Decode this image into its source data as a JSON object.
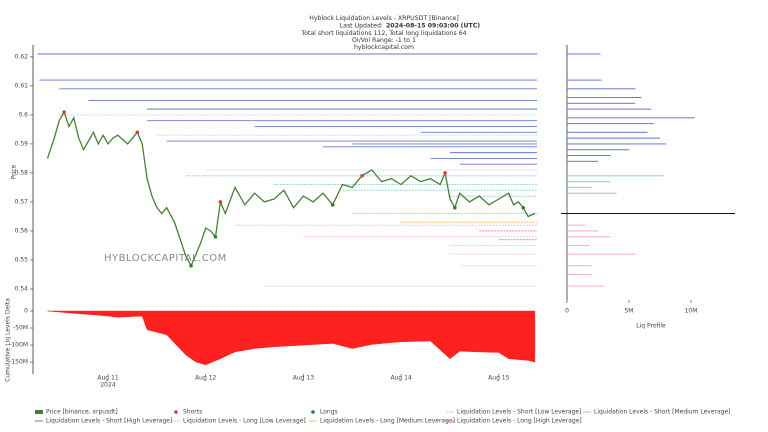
{
  "chart_data": [
    {
      "type": "line",
      "title": "Hyblock Liquidation Levels - XRPUSDT [Binance]",
      "updated_label": "Last Updated:",
      "updated": "2024-08-15 09:03:00 (UTC)",
      "totals": "Total short liquidations 112, Total long liquidations 64",
      "range": "OI/Vol Range: -1 to 1",
      "source": "hyblockcapital.com",
      "watermark": "HYBLOCKCAPITAL.COM",
      "y_label": "Price",
      "x_year_label": "2024",
      "xlim": [
        10.232,
        15.391
      ],
      "xticks": [
        {
          "value": 11,
          "label": "Aug 11"
        },
        {
          "value": 12,
          "label": "Aug 12"
        },
        {
          "value": 13,
          "label": "Aug 13"
        },
        {
          "value": 14,
          "label": "Aug 14"
        },
        {
          "value": 15,
          "label": "Aug 15"
        }
      ],
      "ylim": [
        0.5362,
        0.6241
      ],
      "yticks": [
        0.54,
        0.55,
        0.56,
        0.57,
        0.58,
        0.59,
        0.6,
        0.61,
        0.62
      ],
      "series": [
        {
          "name": "Price [binance, xrpusdt]",
          "type": "line",
          "color": "#4a7d3a",
          "x": [
            10.38,
            10.45,
            10.5,
            10.55,
            10.6,
            10.65,
            10.7,
            10.75,
            10.8,
            10.85,
            10.9,
            10.95,
            11.0,
            11.05,
            11.1,
            11.2,
            11.3,
            11.35,
            11.4,
            11.45,
            11.5,
            11.55,
            11.6,
            11.68,
            11.75,
            11.8,
            11.85,
            11.9,
            11.95,
            12.0,
            12.05,
            12.1,
            12.15,
            12.2,
            12.3,
            12.4,
            12.5,
            12.6,
            12.7,
            12.8,
            12.9,
            13.0,
            13.1,
            13.2,
            13.3,
            13.4,
            13.5,
            13.6,
            13.7,
            13.8,
            13.9,
            14.0,
            14.1,
            14.2,
            14.3,
            14.4,
            14.45,
            14.5,
            14.55,
            14.6,
            14.7,
            14.8,
            14.9,
            15.0,
            15.1,
            15.15,
            15.2,
            15.25,
            15.3,
            15.37
          ],
          "values": [
            0.585,
            0.592,
            0.598,
            0.601,
            0.596,
            0.599,
            0.592,
            0.588,
            0.591,
            0.594,
            0.59,
            0.593,
            0.59,
            0.592,
            0.593,
            0.59,
            0.594,
            0.59,
            0.578,
            0.572,
            0.568,
            0.566,
            0.568,
            0.563,
            0.556,
            0.551,
            0.548,
            0.552,
            0.556,
            0.561,
            0.56,
            0.558,
            0.57,
            0.566,
            0.575,
            0.569,
            0.573,
            0.57,
            0.571,
            0.574,
            0.568,
            0.572,
            0.57,
            0.573,
            0.569,
            0.576,
            0.575,
            0.579,
            0.581,
            0.577,
            0.578,
            0.576,
            0.579,
            0.577,
            0.578,
            0.576,
            0.58,
            0.571,
            0.568,
            0.573,
            0.57,
            0.572,
            0.569,
            0.571,
            0.573,
            0.569,
            0.57,
            0.568,
            0.565,
            0.566
          ]
        },
        {
          "name": "Shorts",
          "type": "scatter",
          "color": "#e53935",
          "x": [
            10.55,
            11.3,
            12.15,
            13.6,
            14.45
          ],
          "values": [
            0.601,
            0.594,
            0.57,
            0.579,
            0.58
          ]
        },
        {
          "name": "Longs",
          "type": "scatter",
          "color": "#2e7d32",
          "x": [
            11.85,
            12.1,
            13.3,
            14.55,
            15.25
          ],
          "values": [
            0.548,
            0.558,
            0.569,
            0.568,
            0.568
          ]
        },
        {
          "name": "Liquidation Levels - Short [Low Leverage]",
          "type": "level",
          "color": "#cfd4ee",
          "x": [
            10.5,
            11.5,
            12.0
          ],
          "values": [
            0.6,
            0.593,
            0.581
          ]
        },
        {
          "name": "Liquidation Levels - Short [Medium Leverage]",
          "type": "level",
          "color": "#8fd1c6",
          "x": [
            11.8,
            12.7,
            13.4,
            14.5
          ],
          "values": [
            0.579,
            0.576,
            0.574,
            0.572
          ]
        },
        {
          "name": "Liquidation Levels - Short [High Leverage]",
          "type": "level",
          "color": "#6a76d4",
          "x": [
            10.28,
            10.3,
            10.5,
            10.8,
            11.4,
            11.4,
            12.5,
            14.2,
            11.6,
            13.2,
            14.5,
            14.3,
            14.6,
            13.5
          ],
          "values": [
            0.621,
            0.612,
            0.609,
            0.605,
            0.602,
            0.598,
            0.596,
            0.594,
            0.591,
            0.589,
            0.587,
            0.585,
            0.583,
            0.59
          ]
        },
        {
          "name": "Liquidation Levels - Long [Low Leverage]",
          "type": "level",
          "color": "#f7c3dd",
          "x": [
            12.3,
            13.0,
            14.5,
            14.5,
            14.6,
            12.6
          ],
          "values": [
            0.562,
            0.558,
            0.555,
            0.552,
            0.548,
            0.541
          ]
        },
        {
          "name": "Liquidation Levels - Long [Medium Leverage]",
          "type": "level",
          "color": "#ffb86b",
          "x": [
            13.5,
            14.0
          ],
          "values": [
            0.566,
            0.563
          ]
        },
        {
          "name": "Liquidation Levels - Long [High Leverage]",
          "type": "level",
          "color": "#f06fa8",
          "x": [
            14.8,
            15.0
          ],
          "values": [
            0.56,
            0.557
          ]
        }
      ]
    },
    {
      "type": "area",
      "y_label": "Cumulative Liq Levels Delta",
      "color": "#ff2020",
      "x": [
        10.38,
        10.5,
        10.7,
        10.9,
        11.1,
        11.35,
        11.4,
        11.6,
        11.8,
        11.9,
        12.0,
        12.15,
        12.3,
        12.5,
        12.7,
        13.0,
        13.3,
        13.5,
        13.7,
        14.0,
        14.3,
        14.5,
        14.6,
        14.8,
        15.0,
        15.1,
        15.3,
        15.37
      ],
      "values": [
        0,
        -3,
        -8,
        -12,
        -18,
        -15,
        -55,
        -70,
        -130,
        -150,
        -158,
        -140,
        -120,
        -110,
        -105,
        -100,
        -95,
        -110,
        -98,
        -90,
        -88,
        -140,
        -118,
        -120,
        -122,
        -140,
        -145,
        -150
      ],
      "ylim": [
        -185,
        14.7
      ],
      "yticks": [
        0,
        {
          "value": -50,
          "label": "-50M"
        },
        {
          "value": -100,
          "label": "-100M"
        },
        {
          "value": -150,
          "label": "-150M"
        }
      ]
    },
    {
      "type": "bar",
      "x_label": "Liq Profile",
      "xlim": [
        0,
        13.55
      ],
      "xticks": [
        0,
        {
          "value": 5,
          "label": "5M"
        },
        {
          "value": 10,
          "label": "10M"
        }
      ],
      "ylim": [
        0.5362,
        0.6241
      ],
      "price_line": 0.566,
      "series": [
        {
          "color": "#6a76d4",
          "y": [
            0.621,
            0.612,
            0.609,
            0.606,
            0.604,
            0.602,
            0.599,
            0.597,
            0.594,
            0.592,
            0.59,
            0.588,
            0.586,
            0.584
          ],
          "values": [
            2.7,
            2.8,
            5.5,
            6.0,
            5.5,
            6.8,
            10.3,
            7.0,
            6.5,
            7.5,
            8.0,
            5.0,
            3.5,
            2.5
          ]
        },
        {
          "color": "#8fd1c6",
          "y": [
            0.579,
            0.577,
            0.575,
            0.573
          ],
          "values": [
            7.8,
            3.5,
            2.0,
            4.0
          ]
        },
        {
          "color": "#f7a8cf",
          "y": [
            0.562,
            0.56,
            0.558,
            0.555,
            0.552,
            0.548,
            0.545,
            0.541
          ],
          "values": [
            1.5,
            2.5,
            3.5,
            1.8,
            5.5,
            2.0,
            2.0,
            3.0
          ]
        }
      ]
    }
  ]
}
